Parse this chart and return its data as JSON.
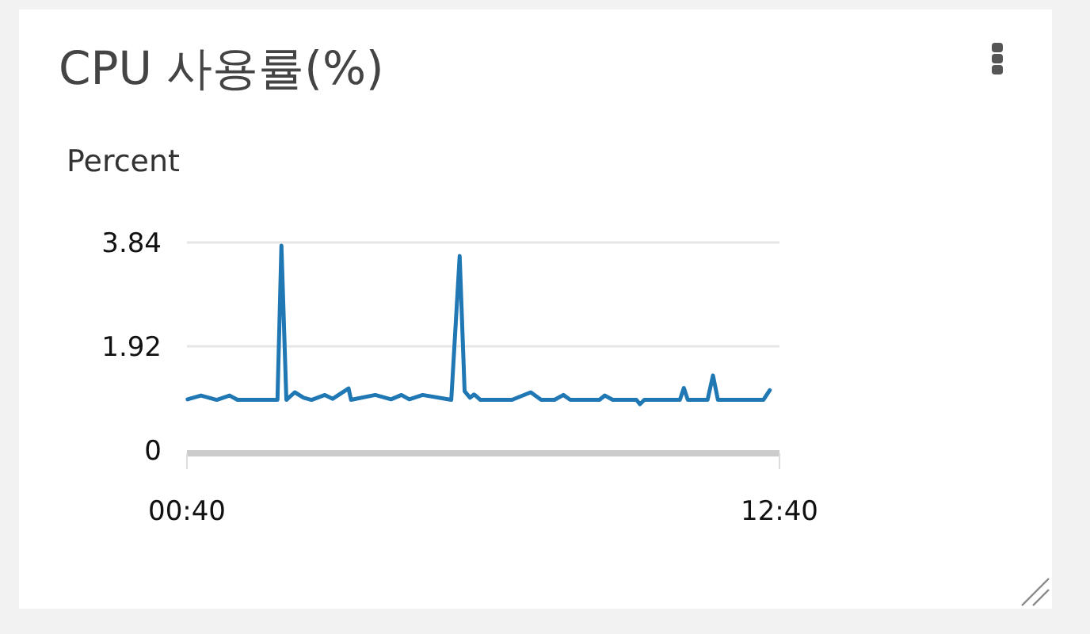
{
  "chart_data": {
    "type": "line",
    "title": "CPU 사용률(%)",
    "ylabel": "Percent",
    "x": [
      0.68,
      0.95,
      1.27,
      1.53,
      1.69,
      2.5,
      2.58,
      2.68,
      2.85,
      3.03,
      3.19,
      3.46,
      3.62,
      3.94,
      3.99,
      4.48,
      4.8,
      5.01,
      5.17,
      5.44,
      6.02,
      6.19,
      6.29,
      6.4,
      6.48,
      6.51,
      6.61,
      7.25,
      7.63,
      7.84,
      8.11,
      8.29,
      8.43,
      9.02,
      9.13,
      9.29,
      9.77,
      9.84,
      9.93,
      10.65,
      10.73,
      10.81,
      11.21,
      11.32,
      11.42,
      12.34,
      12.47
    ],
    "series": [
      {
        "color": "#1f77b4",
        "values": [
          0.94,
          1.01,
          0.93,
          1.01,
          0.93,
          0.93,
          3.78,
          0.93,
          1.07,
          0.97,
          0.93,
          1.02,
          0.95,
          1.14,
          0.93,
          1.02,
          0.94,
          1.02,
          0.94,
          1.02,
          0.93,
          3.59,
          1.09,
          0.97,
          1.03,
          1.01,
          0.93,
          0.93,
          1.07,
          0.93,
          0.93,
          1.02,
          0.93,
          0.93,
          1.01,
          0.93,
          0.93,
          0.85,
          0.93,
          0.93,
          1.15,
          0.93,
          0.93,
          1.38,
          0.93,
          0.93,
          1.11
        ]
      }
    ],
    "xlim": [
      0.6667,
      12.6667
    ],
    "xticks": [
      {
        "value": 0.6667,
        "label": "00:40"
      },
      {
        "value": 12.6667,
        "label": "12:40"
      }
    ],
    "ylim": [
      0,
      3.84
    ],
    "yticks": [
      0,
      1.92,
      3.84
    ],
    "grid": "y"
  }
}
